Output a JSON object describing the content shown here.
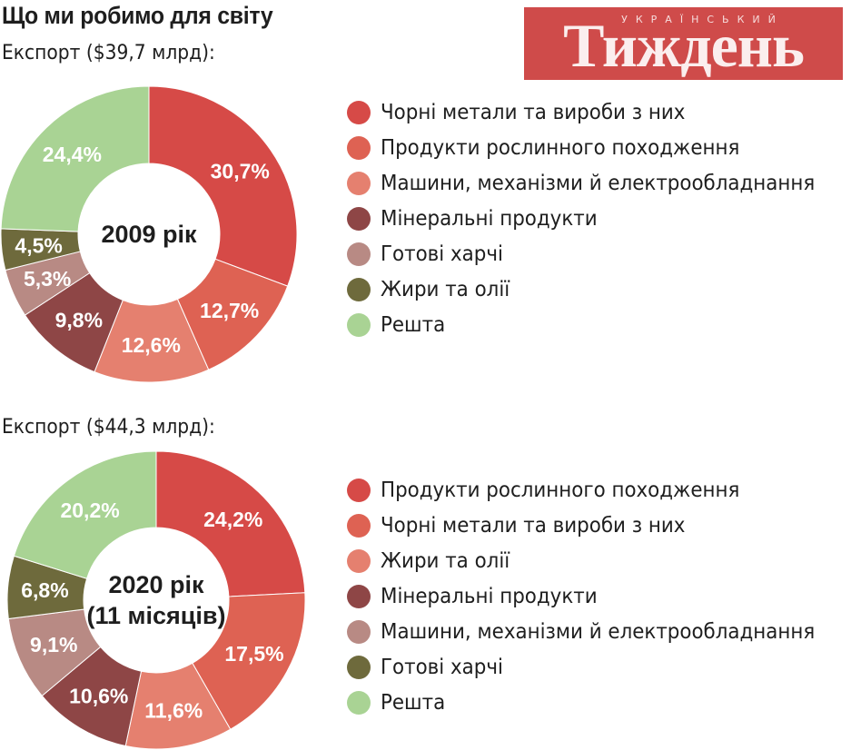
{
  "title": "Що ми робимо для світу",
  "logo": {
    "small": "УКРАЇНСЬКИЙ",
    "big": "Тиждень"
  },
  "colors": {
    "red": "#d64a47",
    "coral": "#de6253",
    "salmon": "#e5806f",
    "maroon": "#8e4646",
    "dusty_rose": "#b88a84",
    "olive": "#6e6a3c",
    "green": "#a9d394"
  },
  "chart_data": [
    {
      "type": "pie",
      "subtitle": "Експорт ($39,7 млрд):",
      "center_label": [
        "2009 рік"
      ],
      "slices": [
        {
          "label": "Чорні метали та вироби з них",
          "value": 30.7,
          "text": "30,7%",
          "color": "#d64a47"
        },
        {
          "label": "Продукти рослинного походження",
          "value": 12.7,
          "text": "12,7%",
          "color": "#de6253"
        },
        {
          "label": "Машини, механізми й електрообладнання",
          "value": 12.6,
          "text": "12,6%",
          "color": "#e5806f"
        },
        {
          "label": "Мінеральні продукти",
          "value": 9.8,
          "text": "9,8%",
          "color": "#8e4646"
        },
        {
          "label": "Готові харчі",
          "value": 5.3,
          "text": "5,3%",
          "color": "#b88a84"
        },
        {
          "label": "Жири та олії",
          "value": 4.5,
          "text": "4,5%",
          "color": "#6e6a3c"
        },
        {
          "label": "Решта",
          "value": 24.4,
          "text": "24,4%",
          "color": "#a9d394"
        }
      ]
    },
    {
      "type": "pie",
      "subtitle": "Експорт ($44,3 млрд):",
      "center_label": [
        "2020 рік",
        "(11 місяців)"
      ],
      "slices": [
        {
          "label": "Продукти рослинного походження",
          "value": 24.2,
          "text": "24,2%",
          "color": "#d64a47"
        },
        {
          "label": "Чорні метали та вироби з них",
          "value": 17.5,
          "text": "17,5%",
          "color": "#de6253"
        },
        {
          "label": "Жири та олії",
          "value": 11.6,
          "text": "11,6%",
          "color": "#e5806f"
        },
        {
          "label": "Мінеральні продукти",
          "value": 10.6,
          "text": "10,6%",
          "color": "#8e4646"
        },
        {
          "label": "Машини, механізми й електрообладнання",
          "value": 9.1,
          "text": "9,1%",
          "color": "#b88a84"
        },
        {
          "label": "Готові харчі",
          "value": 6.8,
          "text": "6,8%",
          "color": "#6e6a3c"
        },
        {
          "label": "Решта",
          "value": 20.2,
          "text": "20,2%",
          "color": "#a9d394"
        }
      ]
    }
  ]
}
